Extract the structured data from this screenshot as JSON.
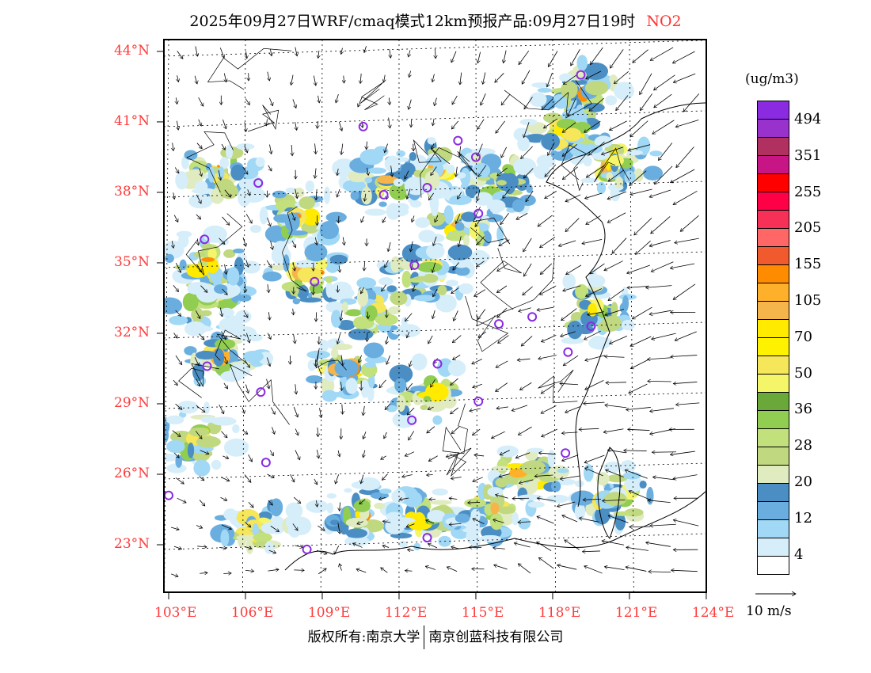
{
  "title": {
    "main": "2025年09月27日WRF/cmaq模式12km预报产品:09月27日19时",
    "species": "NO2"
  },
  "axes": {
    "lon_labels": [
      "103°E",
      "106°E",
      "109°E",
      "112°E",
      "115°E",
      "118°E",
      "121°E",
      "124°E"
    ],
    "lon_values": [
      103,
      106,
      109,
      112,
      115,
      118,
      121,
      124
    ],
    "lat_labels": [
      "44°N",
      "41°N",
      "38°N",
      "35°N",
      "32°N",
      "29°N",
      "26°N",
      "23°N"
    ],
    "lat_values": [
      44,
      41,
      38,
      35,
      32,
      29,
      26,
      23
    ]
  },
  "legend": {
    "unit": "(ug/m3)",
    "colors": [
      "#8a2be2",
      "#9932cc",
      "#b03060",
      "#c71585",
      "#ff0000",
      "#ff0047",
      "#f73058",
      "#ff6666",
      "#f05a2c",
      "#ff8c00",
      "#ffb02a",
      "#f5b54a",
      "#ffea00",
      "#fff200",
      "#f5e65a",
      "#f5f56a",
      "#6aa83a",
      "#90cd50",
      "#c2e07c",
      "#c0d880",
      "#e0ebc0",
      "#4a8ec4",
      "#6aaee0",
      "#a0d8f5",
      "#d6eefa",
      "#ffffff"
    ],
    "labels": [
      "494",
      "351",
      "255",
      "205",
      "155",
      "105",
      "70",
      "50",
      "36",
      "28",
      "20",
      "12",
      "4"
    ]
  },
  "wind_reference": "10 m/s",
  "station_markers": [
    [
      119.1,
      43.0
    ],
    [
      110.6,
      40.8
    ],
    [
      114.3,
      40.2
    ],
    [
      115.0,
      39.5
    ],
    [
      106.5,
      38.4
    ],
    [
      111.4,
      37.9
    ],
    [
      113.1,
      38.2
    ],
    [
      115.1,
      37.1
    ],
    [
      104.4,
      36.0
    ],
    [
      112.6,
      34.9
    ],
    [
      108.7,
      34.2
    ],
    [
      115.9,
      32.4
    ],
    [
      117.2,
      32.7
    ],
    [
      119.5,
      32.3
    ],
    [
      118.6,
      31.2
    ],
    [
      113.5,
      30.7
    ],
    [
      104.5,
      30.6
    ],
    [
      106.6,
      29.5
    ],
    [
      115.1,
      29.1
    ],
    [
      112.5,
      28.3
    ],
    [
      118.5,
      26.9
    ],
    [
      106.8,
      26.5
    ],
    [
      103.0,
      25.1
    ],
    [
      113.1,
      23.3
    ],
    [
      108.4,
      22.8
    ]
  ],
  "footer": {
    "left": "版权所有:南京大学",
    "right": "南京创蓝科技有限公司"
  }
}
